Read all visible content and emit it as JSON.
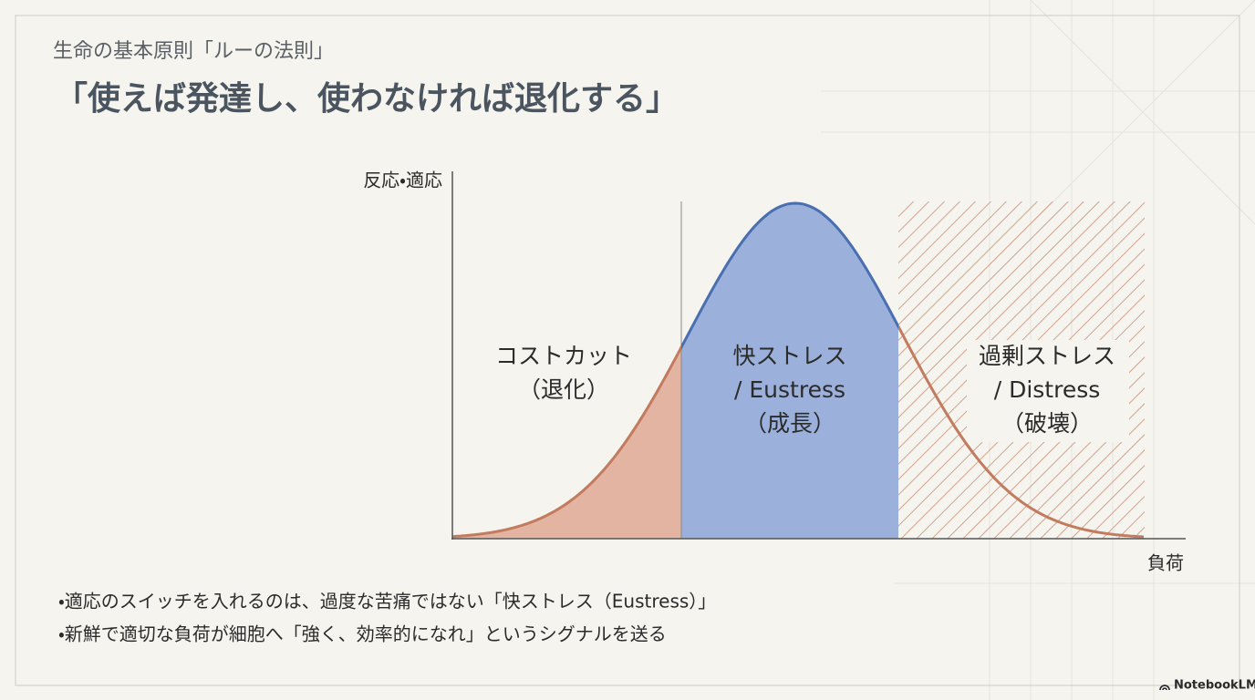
{
  "header": {
    "subtitle": "生命の基本原則「ルーの法則」",
    "title": "「使えば発達し、使わなければ退化する」"
  },
  "diagram": {
    "y_axis_label": "反応・適応",
    "x_axis_label": "負荷",
    "regions": [
      {
        "lines": [
          "コストカット",
          "（退化）"
        ]
      },
      {
        "lines": [
          "快ストレス",
          "/ Eustress",
          "（成長）"
        ]
      },
      {
        "lines": [
          "過剰ストレス",
          "/ Distress",
          "（破壊）"
        ]
      }
    ]
  },
  "bullets": [
    "・適応のスイッチを入れるのは、過度な苦痛ではない「快ストレス（Eustress）」",
    "・新鮮で適切な負荷が細胞へ「強く、効率的になれ」というシグナルを送る"
  ],
  "footer": {
    "brand": "NotebookLM"
  }
}
